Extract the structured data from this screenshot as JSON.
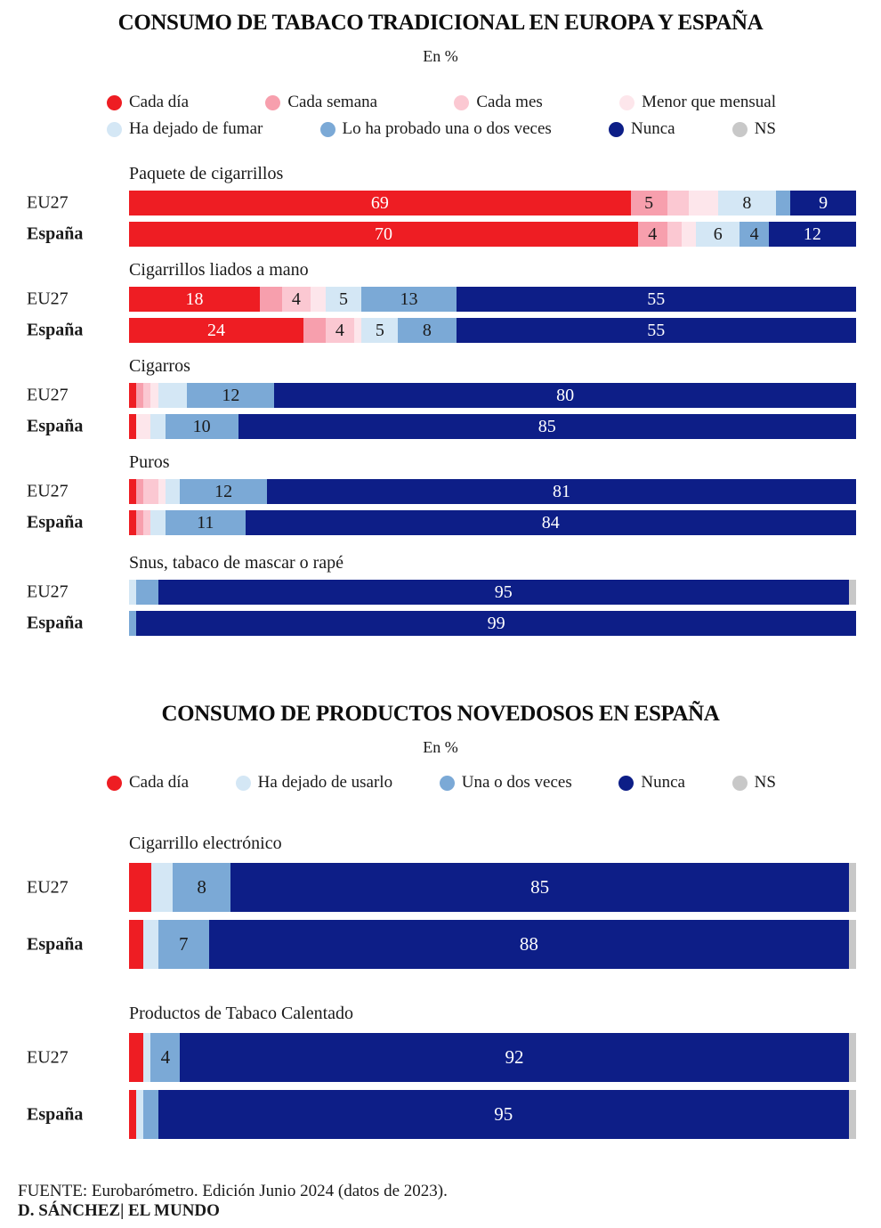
{
  "chart_data": {
    "type": "bar",
    "orientation": "horizontal",
    "stacked": true,
    "unit": "percent",
    "xlim": [
      0,
      100
    ],
    "colors": {
      "dia": "#ee1d23",
      "semana": "#f79fad",
      "mes": "#fbc8d2",
      "menor": "#fde6eb",
      "dejado": "#d4e7f5",
      "probado": "#7ba9d6",
      "nunca": "#0d1e87",
      "ns": "#c8c8c8"
    },
    "charts": [
      {
        "title": "CONSUMO DE TABACO TRADICIONAL EN EUROPA Y ESPAÑA",
        "subtitle": "En %",
        "legend_rows": [
          [
            {
              "key": "dia",
              "label": "Cada día"
            },
            {
              "key": "semana",
              "label": "Cada semana"
            },
            {
              "key": "mes",
              "label": "Cada mes"
            },
            {
              "key": "menor",
              "label": "Menor que mensual"
            }
          ],
          [
            {
              "key": "dejado",
              "label": "Ha dejado de fumar"
            },
            {
              "key": "probado",
              "label": "Lo ha probado una o dos veces"
            },
            {
              "key": "nunca",
              "label": "Nunca"
            },
            {
              "key": "ns",
              "label": "NS"
            }
          ]
        ],
        "groups": [
          {
            "label": "Paquete de cigarrillos",
            "rows": [
              {
                "name": "EU27",
                "bold": false,
                "segments": [
                  {
                    "key": "dia",
                    "value": 69,
                    "label": "69"
                  },
                  {
                    "key": "semana",
                    "value": 5,
                    "label": "5"
                  },
                  {
                    "key": "mes",
                    "value": 3,
                    "label": ""
                  },
                  {
                    "key": "menor",
                    "value": 4,
                    "label": ""
                  },
                  {
                    "key": "dejado",
                    "value": 8,
                    "label": "8"
                  },
                  {
                    "key": "probado",
                    "value": 2,
                    "label": ""
                  },
                  {
                    "key": "nunca",
                    "value": 9,
                    "label": "9"
                  }
                ]
              },
              {
                "name": "España",
                "bold": true,
                "segments": [
                  {
                    "key": "dia",
                    "value": 70,
                    "label": "70"
                  },
                  {
                    "key": "semana",
                    "value": 4,
                    "label": "4"
                  },
                  {
                    "key": "mes",
                    "value": 2,
                    "label": ""
                  },
                  {
                    "key": "menor",
                    "value": 2,
                    "label": ""
                  },
                  {
                    "key": "dejado",
                    "value": 6,
                    "label": "6"
                  },
                  {
                    "key": "probado",
                    "value": 4,
                    "label": "4"
                  },
                  {
                    "key": "nunca",
                    "value": 12,
                    "label": "12"
                  }
                ]
              }
            ]
          },
          {
            "label": "Cigarrillos liados a mano",
            "rows": [
              {
                "name": "EU27",
                "bold": false,
                "segments": [
                  {
                    "key": "dia",
                    "value": 18,
                    "label": "18"
                  },
                  {
                    "key": "semana",
                    "value": 3,
                    "label": ""
                  },
                  {
                    "key": "mes",
                    "value": 4,
                    "label": "4"
                  },
                  {
                    "key": "menor",
                    "value": 2,
                    "label": ""
                  },
                  {
                    "key": "dejado",
                    "value": 5,
                    "label": "5"
                  },
                  {
                    "key": "probado",
                    "value": 13,
                    "label": "13"
                  },
                  {
                    "key": "nunca",
                    "value": 55,
                    "label": "55"
                  }
                ]
              },
              {
                "name": "España",
                "bold": true,
                "segments": [
                  {
                    "key": "dia",
                    "value": 24,
                    "label": "24"
                  },
                  {
                    "key": "semana",
                    "value": 3,
                    "label": ""
                  },
                  {
                    "key": "mes",
                    "value": 4,
                    "label": "4"
                  },
                  {
                    "key": "menor",
                    "value": 1,
                    "label": ""
                  },
                  {
                    "key": "dejado",
                    "value": 5,
                    "label": "5"
                  },
                  {
                    "key": "probado",
                    "value": 8,
                    "label": "8"
                  },
                  {
                    "key": "nunca",
                    "value": 55,
                    "label": "55"
                  }
                ]
              }
            ]
          },
          {
            "label": "Cigarros",
            "rows": [
              {
                "name": "EU27",
                "bold": false,
                "segments": [
                  {
                    "key": "dia",
                    "value": 1,
                    "label": ""
                  },
                  {
                    "key": "semana",
                    "value": 1,
                    "label": ""
                  },
                  {
                    "key": "mes",
                    "value": 1,
                    "label": ""
                  },
                  {
                    "key": "menor",
                    "value": 1,
                    "label": ""
                  },
                  {
                    "key": "dejado",
                    "value": 4,
                    "label": ""
                  },
                  {
                    "key": "probado",
                    "value": 12,
                    "label": "12"
                  },
                  {
                    "key": "nunca",
                    "value": 80,
                    "label": "80"
                  }
                ]
              },
              {
                "name": "España",
                "bold": true,
                "segments": [
                  {
                    "key": "dia",
                    "value": 1,
                    "label": ""
                  },
                  {
                    "key": "menor",
                    "value": 2,
                    "label": ""
                  },
                  {
                    "key": "dejado",
                    "value": 2,
                    "label": ""
                  },
                  {
                    "key": "probado",
                    "value": 10,
                    "label": "10"
                  },
                  {
                    "key": "nunca",
                    "value": 85,
                    "label": "85"
                  }
                ]
              }
            ]
          },
          {
            "label": "Puros",
            "rows": [
              {
                "name": "EU27",
                "bold": false,
                "segments": [
                  {
                    "key": "dia",
                    "value": 1,
                    "label": ""
                  },
                  {
                    "key": "semana",
                    "value": 1,
                    "label": ""
                  },
                  {
                    "key": "mes",
                    "value": 2,
                    "label": ""
                  },
                  {
                    "key": "menor",
                    "value": 1,
                    "label": ""
                  },
                  {
                    "key": "dejado",
                    "value": 2,
                    "label": ""
                  },
                  {
                    "key": "probado",
                    "value": 12,
                    "label": "12"
                  },
                  {
                    "key": "nunca",
                    "value": 81,
                    "label": "81"
                  }
                ]
              },
              {
                "name": "España",
                "bold": true,
                "segments": [
                  {
                    "key": "dia",
                    "value": 1,
                    "label": ""
                  },
                  {
                    "key": "semana",
                    "value": 1,
                    "label": ""
                  },
                  {
                    "key": "mes",
                    "value": 1,
                    "label": ""
                  },
                  {
                    "key": "dejado",
                    "value": 2,
                    "label": ""
                  },
                  {
                    "key": "probado",
                    "value": 11,
                    "label": "11"
                  },
                  {
                    "key": "nunca",
                    "value": 84,
                    "label": "84"
                  }
                ]
              }
            ]
          },
          {
            "label": "Snus, tabaco de mascar o rapé",
            "rows": [
              {
                "name": "EU27",
                "bold": false,
                "segments": [
                  {
                    "key": "dejado",
                    "value": 1,
                    "label": ""
                  },
                  {
                    "key": "probado",
                    "value": 3,
                    "label": ""
                  },
                  {
                    "key": "nunca",
                    "value": 95,
                    "label": "95"
                  },
                  {
                    "key": "ns",
                    "value": 1,
                    "label": ""
                  }
                ]
              },
              {
                "name": "España",
                "bold": true,
                "segments": [
                  {
                    "key": "probado",
                    "value": 1,
                    "label": ""
                  },
                  {
                    "key": "nunca",
                    "value": 99,
                    "label": "99"
                  }
                ]
              }
            ]
          }
        ]
      },
      {
        "title": "CONSUMO DE PRODUCTOS NOVEDOSOS EN ESPAÑA",
        "subtitle": "En %",
        "legend_rows": [
          [
            {
              "key": "dia",
              "label": "Cada día"
            },
            {
              "key": "dejado",
              "label": "Ha dejado de usarlo"
            },
            {
              "key": "probado",
              "label": "Una o dos veces"
            },
            {
              "key": "nunca",
              "label": "Nunca"
            },
            {
              "key": "ns",
              "label": "NS"
            }
          ]
        ],
        "groups": [
          {
            "label": "Cigarrillo electrónico",
            "rows": [
              {
                "name": "EU27",
                "bold": false,
                "segments": [
                  {
                    "key": "dia",
                    "value": 3,
                    "label": ""
                  },
                  {
                    "key": "dejado",
                    "value": 3,
                    "label": ""
                  },
                  {
                    "key": "probado",
                    "value": 8,
                    "label": "8"
                  },
                  {
                    "key": "nunca",
                    "value": 85,
                    "label": "85"
                  },
                  {
                    "key": "ns",
                    "value": 1,
                    "label": ""
                  }
                ]
              },
              {
                "name": "España",
                "bold": true,
                "segments": [
                  {
                    "key": "dia",
                    "value": 2,
                    "label": ""
                  },
                  {
                    "key": "dejado",
                    "value": 2,
                    "label": ""
                  },
                  {
                    "key": "probado",
                    "value": 7,
                    "label": "7"
                  },
                  {
                    "key": "nunca",
                    "value": 88,
                    "label": "88"
                  },
                  {
                    "key": "ns",
                    "value": 1,
                    "label": ""
                  }
                ]
              }
            ]
          },
          {
            "label": "Productos de Tabaco Calentado",
            "rows": [
              {
                "name": "EU27",
                "bold": false,
                "segments": [
                  {
                    "key": "dia",
                    "value": 2,
                    "label": ""
                  },
                  {
                    "key": "dejado",
                    "value": 1,
                    "label": ""
                  },
                  {
                    "key": "probado",
                    "value": 4,
                    "label": "4"
                  },
                  {
                    "key": "nunca",
                    "value": 92,
                    "label": "92"
                  },
                  {
                    "key": "ns",
                    "value": 1,
                    "label": ""
                  }
                ]
              },
              {
                "name": "España",
                "bold": true,
                "segments": [
                  {
                    "key": "dia",
                    "value": 1,
                    "label": ""
                  },
                  {
                    "key": "dejado",
                    "value": 1,
                    "label": ""
                  },
                  {
                    "key": "probado",
                    "value": 2,
                    "label": ""
                  },
                  {
                    "key": "nunca",
                    "value": 95,
                    "label": "95"
                  },
                  {
                    "key": "ns",
                    "value": 1,
                    "label": ""
                  }
                ]
              }
            ]
          }
        ]
      }
    ],
    "footer": {
      "source": "FUENTE: Eurobarómetro. Edición Junio 2024 (datos de 2023).",
      "credit": "D. SÁNCHEZ| EL MUNDO"
    }
  }
}
